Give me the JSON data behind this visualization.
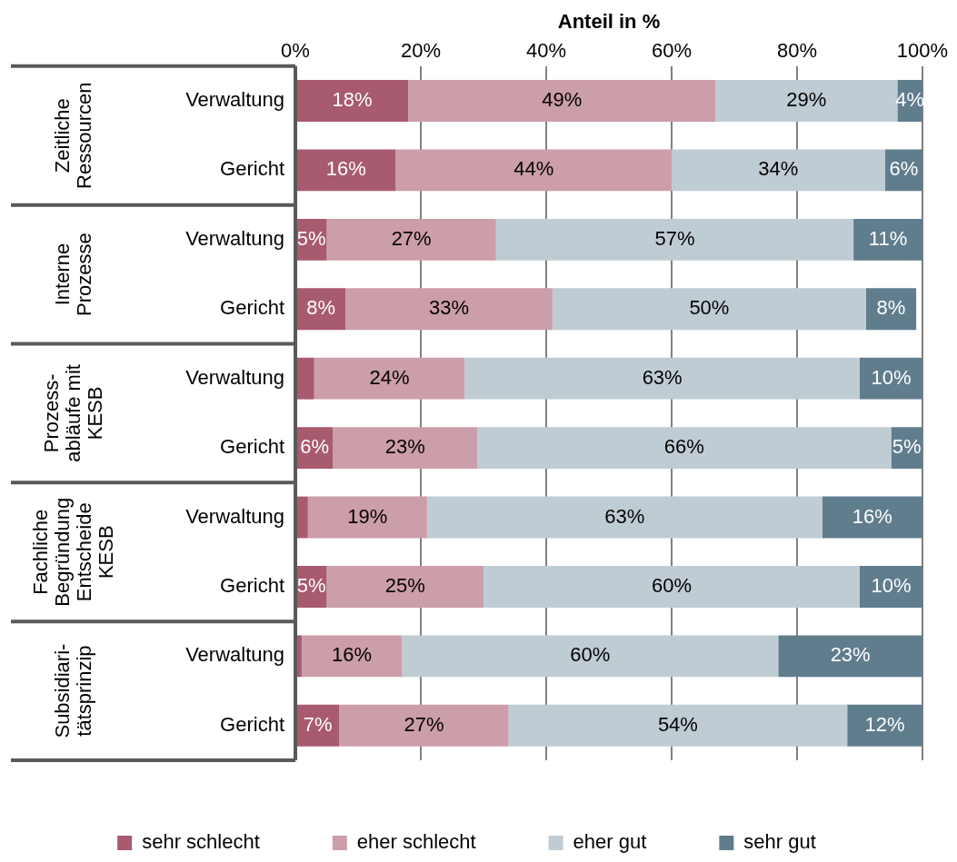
{
  "chart_data": {
    "type": "bar",
    "orientation": "horizontal",
    "stacked": true,
    "xlabel": "Anteil in %",
    "categories": [
      "Verwaltung",
      "Gericht",
      "Verwaltung",
      "Gericht",
      "Verwaltung",
      "Gericht",
      "Verwaltung",
      "Gericht",
      "Verwaltung",
      "Gericht"
    ],
    "annotations": [
      "Zeitliche\nRessourcen",
      "Interne\nProzesse",
      "Prozess-\nabläufe mit\nKESB",
      "Fachliche\nBegründung\nEntscheide\nKESB",
      "Subsidiari-\ntätsprinzip"
    ],
    "series": [
      {
        "name": "sehr schlecht",
        "color": "#a85a6e",
        "values": [
          18,
          16,
          5,
          8,
          3,
          6,
          2,
          5,
          1,
          7
        ],
        "value_labels": [
          "18%",
          "16%",
          "5%",
          "8%",
          null,
          "6%",
          null,
          "5%",
          null,
          "7%"
        ]
      },
      {
        "name": "eher schlecht",
        "color": "#cc9ea9",
        "values": [
          49,
          44,
          27,
          33,
          24,
          23,
          19,
          25,
          16,
          27
        ],
        "value_labels": [
          "49%",
          "44%",
          "27%",
          "33%",
          "24%",
          "23%",
          "19%",
          "25%",
          "16%",
          "27%"
        ]
      },
      {
        "name": "eher gut",
        "color": "#c0ccd3",
        "values": [
          29,
          34,
          57,
          50,
          63,
          66,
          63,
          60,
          60,
          54
        ],
        "value_labels": [
          "29%",
          "34%",
          "57%",
          "50%",
          "63%",
          "66%",
          "63%",
          "60%",
          "60%",
          "54%"
        ]
      },
      {
        "name": "sehr gut",
        "color": "#607d8e",
        "values": [
          4,
          6,
          11,
          8,
          10,
          5,
          16,
          10,
          23,
          12
        ],
        "value_labels": [
          "4%",
          "6%",
          "11%",
          "8%",
          "10%",
          "5%",
          "16%",
          "10%",
          "23%",
          "12%"
        ]
      }
    ],
    "xlim": [
      0,
      100
    ],
    "xticks": [
      {
        "value": 0,
        "label": "0%"
      },
      {
        "value": 20,
        "label": "20%"
      },
      {
        "value": 40,
        "label": "40%"
      },
      {
        "value": 60,
        "label": "60%"
      },
      {
        "value": 80,
        "label": "80%"
      },
      {
        "value": 100,
        "label": "100%"
      }
    ],
    "grid": "x",
    "legend": "bottom"
  }
}
